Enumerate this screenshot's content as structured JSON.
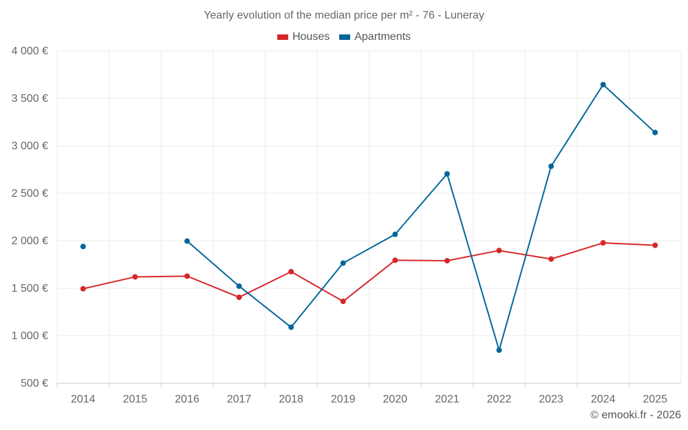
{
  "chart_data": {
    "type": "line",
    "title": "Yearly evolution of the median price per m² - 76 - Luneray",
    "categories": [
      "2014",
      "2015",
      "2016",
      "2017",
      "2018",
      "2019",
      "2020",
      "2021",
      "2022",
      "2023",
      "2024",
      "2025"
    ],
    "series": [
      {
        "name": "Houses",
        "color": "#d62728",
        "values": [
          1495,
          1620,
          1628,
          1405,
          1675,
          1362,
          1795,
          1790,
          1898,
          1808,
          1978,
          1953
        ]
      },
      {
        "name": "Apartments",
        "color": "#006699",
        "values": [
          1940,
          null,
          1997,
          1522,
          1090,
          1765,
          2068,
          2705,
          848,
          2785,
          3645,
          3140
        ]
      }
    ],
    "ylim": [
      500,
      4000
    ],
    "yticks": [
      500,
      1000,
      1500,
      2000,
      2500,
      3000,
      3500,
      4000
    ],
    "ytick_labels": [
      "500 €",
      "1 000 €",
      "1 500 €",
      "2 000 €",
      "2 500 €",
      "3 000 €",
      "3 500 €",
      "4 000 €"
    ],
    "grid": true,
    "legend_position": "top-center"
  },
  "legend": {
    "houses": "Houses",
    "apartments": "Apartments"
  },
  "credit": "© emooki.fr - 2026"
}
